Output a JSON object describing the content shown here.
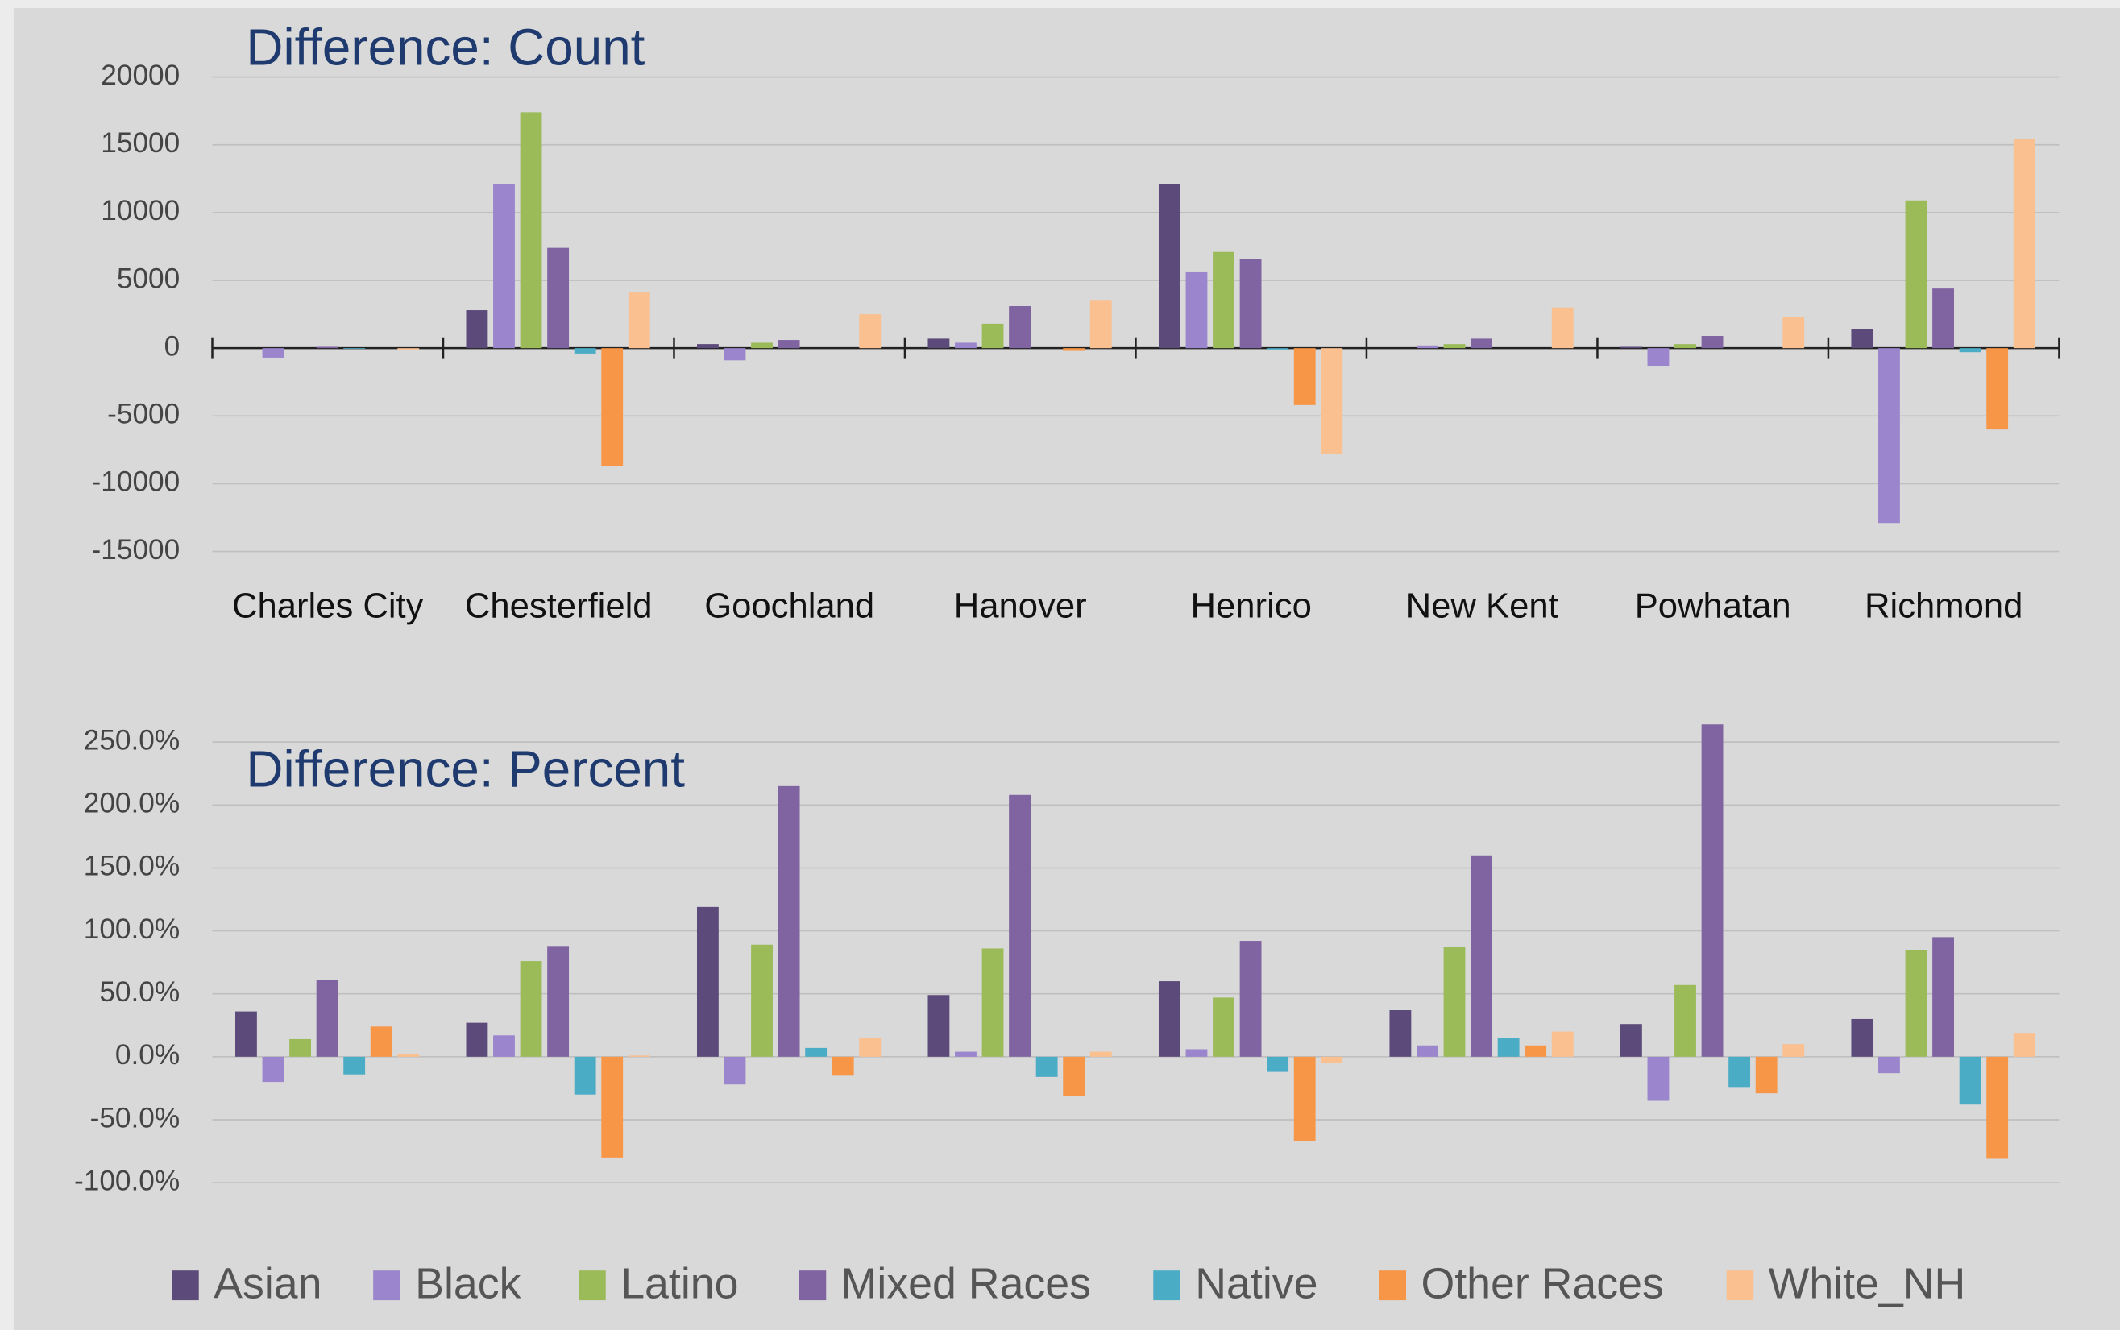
{
  "chart_data": [
    {
      "type": "bar",
      "title": "Difference: Count",
      "categories": [
        "Charles City",
        "Chesterfield",
        "Goochland",
        "Hanover",
        "Henrico",
        "New Kent",
        "Powhatan",
        "Richmond"
      ],
      "series": [
        {
          "color": "#5b4a7a",
          "values": [
            0,
            2800,
            300,
            700,
            12100,
            0,
            100,
            1400
          ]
        },
        {
          "color": "#9b85cc",
          "values": [
            -700,
            12100,
            -900,
            400,
            5600,
            200,
            -1300,
            -12900
          ]
        },
        {
          "color": "#9bbb59",
          "values": [
            0,
            17400,
            400,
            1800,
            7100,
            300,
            300,
            10900
          ]
        },
        {
          "color": "#8064a2",
          "values": [
            100,
            7400,
            600,
            3100,
            6600,
            700,
            900,
            4400
          ]
        },
        {
          "color": "#4bacc6",
          "values": [
            -50,
            -400,
            0,
            0,
            -100,
            0,
            0,
            -300
          ]
        },
        {
          "color": "#f79646",
          "values": [
            0,
            -8700,
            0,
            -200,
            -4200,
            0,
            0,
            -6000
          ]
        },
        {
          "color": "#fac090",
          "values": [
            -100,
            4100,
            2500,
            3500,
            -7800,
            3000,
            2300,
            15400
          ]
        }
      ],
      "ylim": [
        -15000,
        20000
      ],
      "yticks": [
        -15000,
        -10000,
        -5000,
        0,
        5000,
        10000,
        15000,
        20000
      ],
      "grid": true
    },
    {
      "type": "bar",
      "title": "Difference: Percent",
      "categories": [
        null,
        null,
        null,
        null,
        null,
        null,
        null,
        null
      ],
      "series": [
        {
          "name": "Asian",
          "color": "#5b4a7a",
          "values": [
            36,
            27,
            119,
            49,
            60,
            37,
            26,
            30
          ]
        },
        {
          "name": "Black",
          "color": "#9b85cc",
          "values": [
            -20,
            17,
            -22,
            4,
            6,
            9,
            -35,
            -13
          ]
        },
        {
          "name": "Latino",
          "color": "#9bbb59",
          "values": [
            14,
            76,
            89,
            86,
            47,
            87,
            57,
            85
          ]
        },
        {
          "name": "Mixed Races",
          "color": "#8064a2",
          "values": [
            61,
            88,
            215,
            208,
            92,
            160,
            264,
            95
          ]
        },
        {
          "name": "Native",
          "color": "#4bacc6",
          "values": [
            -14,
            -30,
            7,
            -16,
            -12,
            15,
            -24,
            -38
          ]
        },
        {
          "name": "Other Races",
          "color": "#f79646",
          "values": [
            24,
            -80,
            -15,
            -31,
            -67,
            9,
            -29,
            -81
          ]
        },
        {
          "name": "White_NH",
          "color": "#fac090",
          "values": [
            2,
            1,
            15,
            4,
            -5,
            20,
            10,
            19
          ]
        }
      ],
      "ylim": [
        -100,
        250
      ],
      "yticks": [
        {
          "value": -100,
          "label": "-100.0%"
        },
        {
          "value": -50,
          "label": "-50.0%"
        },
        {
          "value": 0,
          "label": "0.0%"
        },
        {
          "value": 50,
          "label": "50.0%"
        },
        {
          "value": 100,
          "label": "100.0%"
        },
        {
          "value": 150,
          "label": "150.0%"
        },
        {
          "value": 200,
          "label": "200.0%"
        },
        {
          "value": 250,
          "label": "250.0%"
        }
      ],
      "grid": true,
      "legend": "bottom"
    }
  ]
}
